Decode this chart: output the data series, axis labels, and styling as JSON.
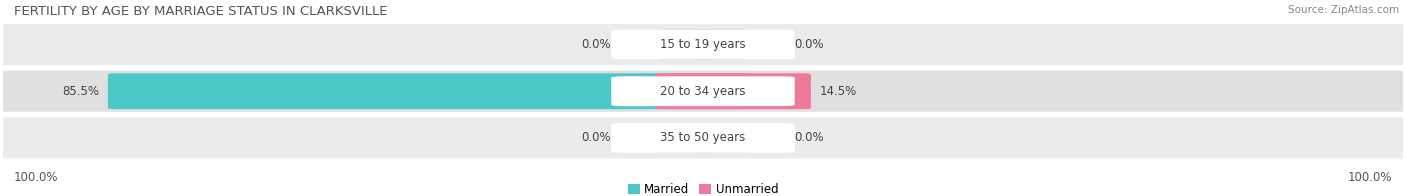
{
  "title": "FERTILITY BY AGE BY MARRIAGE STATUS IN CLARKSVILLE",
  "source": "Source: ZipAtlas.com",
  "categories": [
    "15 to 19 years",
    "20 to 34 years",
    "35 to 50 years"
  ],
  "married_values": [
    0.0,
    85.5,
    0.0
  ],
  "unmarried_values": [
    0.0,
    14.5,
    0.0
  ],
  "married_color": "#4dc8c8",
  "unmarried_color": "#f07898",
  "row_bg_colors": [
    "#ebebeb",
    "#e0e0e0",
    "#ebebeb"
  ],
  "label_left_100": "100.0%",
  "label_right_100": "100.0%",
  "title_fontsize": 9.5,
  "label_fontsize": 8.5,
  "source_fontsize": 7.5,
  "legend_fontsize": 8.5
}
